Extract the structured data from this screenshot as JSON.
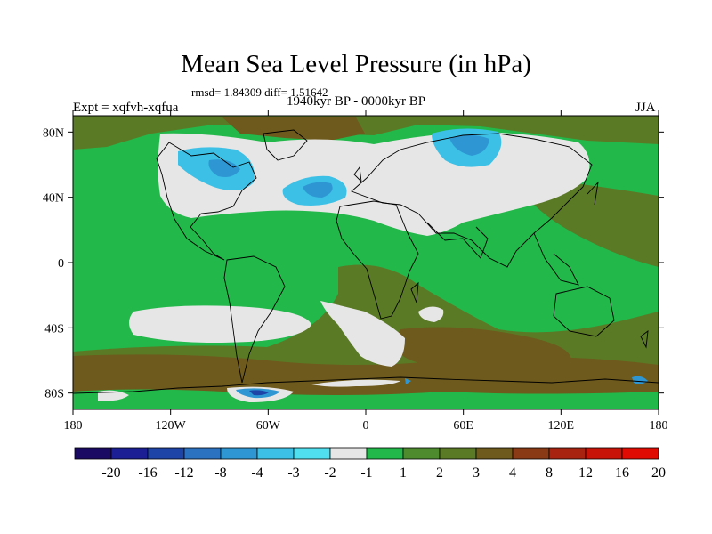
{
  "header": {
    "title": "Mean Sea Level Pressure (in hPa)",
    "stats": "rmsd= 1.84309  diff= 1.51642",
    "experiment": "Expt = xqfvh-xqfua",
    "period": "1940kyr BP - 0000kyr BP",
    "season": "JJA"
  },
  "map": {
    "lat_labels": [
      "80N",
      "40N",
      "0",
      "40S",
      "80S"
    ],
    "lat_values": [
      80,
      40,
      0,
      -40,
      -80
    ],
    "lon_labels": [
      "180",
      "120W",
      "60W",
      "0",
      "60E",
      "120E",
      "180"
    ],
    "lon_values": [
      -180,
      -120,
      -60,
      0,
      60,
      120,
      180
    ]
  },
  "colorbar": {
    "colors": [
      "#1b0a63",
      "#1c1f93",
      "#1f44a8",
      "#2b73c0",
      "#2e97d3",
      "#3cc0e6",
      "#4fdfee",
      "#e6e6e6",
      "#22b84a",
      "#4e8a2e",
      "#5a7a26",
      "#6e5a1c",
      "#8a3a14",
      "#a82410",
      "#c81408",
      "#e00c04"
    ],
    "labels": [
      "-20",
      "-16",
      "-12",
      "-8",
      "-4",
      "-3",
      "-2",
      "-1",
      "1",
      "2",
      "3",
      "4",
      "8",
      "12",
      "16",
      "20"
    ]
  }
}
